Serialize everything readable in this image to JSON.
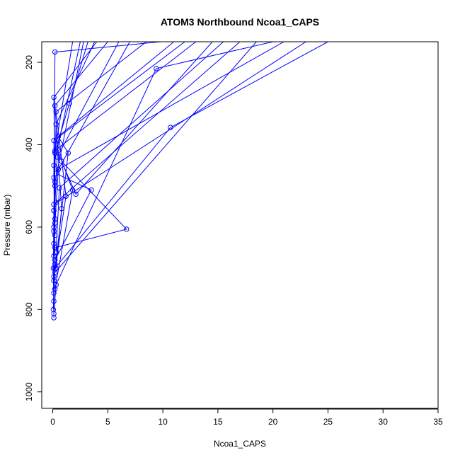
{
  "chart_data": {
    "type": "line",
    "title": "ATOM3 Northbound Ncoa1_CAPS",
    "xlabel": "Ncoa1_CAPS",
    "ylabel": "Pressure (mbar)",
    "xlim": [
      -1,
      35
    ],
    "ylim": [
      1040,
      150
    ],
    "y_reversed": true,
    "x_ticks": [
      0,
      5,
      10,
      15,
      20,
      25,
      30,
      35
    ],
    "y_ticks": [
      200,
      400,
      600,
      800,
      1000
    ],
    "grid": false,
    "legend": "none",
    "series_color": "#0000ff",
    "marker": "open-circle",
    "profiles": [
      {
        "x": [
          0.1,
          0.05,
          0.1,
          0.2,
          1.5,
          3.2
        ],
        "y": [
          820,
          700,
          560,
          420,
          300,
          150
        ]
      },
      {
        "x": [
          0.1,
          0.3,
          9.4,
          20.0
        ],
        "y": [
          810,
          740,
          215,
          150
        ]
      },
      {
        "x": [
          0.05,
          0.2,
          6.7,
          0.8,
          2.1,
          14.5
        ],
        "y": [
          800,
          650,
          605,
          440,
          520,
          150
        ]
      },
      {
        "x": [
          0.1,
          0.2,
          10.7,
          25.0
        ],
        "y": [
          780,
          700,
          358,
          150
        ]
      },
      {
        "x": [
          0.1,
          0.2,
          3.5,
          0.3,
          7.0
        ],
        "y": [
          760,
          680,
          510,
          470,
          150
        ]
      },
      {
        "x": [
          0.2,
          1.8,
          0.4,
          13.0
        ],
        "y": [
          750,
          510,
          410,
          150
        ]
      },
      {
        "x": [
          0.1,
          1.4,
          0.5,
          11.0
        ],
        "y": [
          730,
          420,
          380,
          150
        ]
      },
      {
        "x": [
          0.1,
          1.2,
          0.3,
          8.5
        ],
        "y": [
          720,
          525,
          320,
          150
        ]
      },
      {
        "x": [
          0.3,
          0.8,
          0.2,
          5.0
        ],
        "y": [
          700,
          555,
          305,
          150
        ]
      },
      {
        "x": [
          0.2,
          0.1,
          0.2,
          9.8
        ],
        "y": [
          690,
          480,
          175,
          150
        ]
      },
      {
        "x": [
          0.1,
          0.2,
          0.1,
          4.0
        ],
        "y": [
          670,
          500,
          285,
          150
        ]
      },
      {
        "x": [
          0.1,
          0.3,
          17.0
        ],
        "y": [
          640,
          540,
          150
        ]
      },
      {
        "x": [
          0.2,
          0.1,
          2.5
        ],
        "y": [
          620,
          450,
          150
        ]
      },
      {
        "x": [
          0.1,
          0.4,
          6.0
        ],
        "y": [
          600,
          430,
          150
        ]
      },
      {
        "x": [
          0.2,
          0.1,
          12.0
        ],
        "y": [
          580,
          390,
          150
        ]
      },
      {
        "x": [
          0.1,
          0.3,
          3.8
        ],
        "y": [
          560,
          350,
          150
        ]
      },
      {
        "x": [
          0.2,
          0.5,
          21.0
        ],
        "y": [
          590,
          460,
          150
        ]
      },
      {
        "x": [
          0.1,
          0.2,
          1.8
        ],
        "y": [
          610,
          415,
          150
        ]
      },
      {
        "x": [
          0.3,
          0.6,
          15.5
        ],
        "y": [
          660,
          505,
          150
        ]
      },
      {
        "x": [
          0.2,
          18.5
        ],
        "y": [
          710,
          150
        ]
      },
      {
        "x": [
          0.1,
          23.0
        ],
        "y": [
          545,
          150
        ]
      },
      {
        "x": [
          0.2,
          2.8
        ],
        "y": [
          490,
          150
        ]
      }
    ]
  }
}
